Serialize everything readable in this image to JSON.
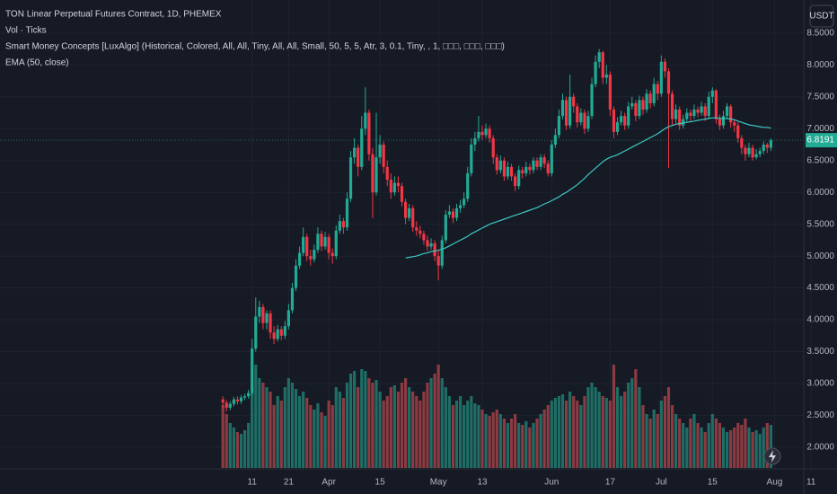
{
  "chart_data": {
    "type": "candlestick",
    "title": "TON Linear Perpetual Futures Contract, 1D, PHEMEX",
    "currency": "USDT",
    "up_color": "#22ab94",
    "down_color": "#f23645",
    "overlays": [
      "Smart Money Concepts [LuxAlgo] (Historical, Colored, All, All, Tiny, All, All, Small, 50, 5, 5, Atr, 3, 0.1, Tiny, , 1, □□□, □□□, □□□)"
    ],
    "open": [
      2.75,
      2.7,
      2.62,
      2.68,
      2.75,
      2.72,
      2.78,
      2.8,
      2.85,
      3.55,
      4.05,
      4.2,
      3.95,
      4.1,
      3.8,
      3.7,
      3.85,
      3.75,
      3.9,
      4.15,
      4.5,
      4.85,
      5.05,
      5.3,
      5.0,
      4.95,
      5.1,
      5.35,
      5.15,
      5.3,
      5.05,
      5.0,
      5.4,
      5.55,
      5.45,
      5.9,
      6.55,
      6.7,
      6.4,
      7.0,
      7.25,
      6.6,
      6.0,
      6.55,
      6.75,
      6.4,
      6.2,
      6.0,
      6.15,
      6.1,
      5.85,
      5.6,
      5.75,
      5.45,
      5.4,
      5.35,
      5.25,
      5.15,
      5.2,
      5.0,
      4.85,
      5.25,
      5.65,
      5.7,
      5.6,
      5.75,
      5.8,
      5.9,
      6.3,
      6.75,
      6.85,
      6.95,
      6.9,
      7.0,
      6.85,
      6.55,
      6.35,
      6.5,
      6.25,
      6.4,
      6.25,
      6.1,
      6.35,
      6.3,
      6.4,
      6.35,
      6.5,
      6.4,
      6.55,
      6.45,
      6.3,
      6.75,
      6.9,
      7.2,
      7.45,
      7.05,
      7.5,
      7.35,
      7.1,
      7.25,
      7.0,
      7.2,
      7.7,
      8.05,
      8.2,
      7.8,
      7.85,
      7.3,
      6.95,
      7.1,
      7.2,
      7.05,
      7.35,
      7.4,
      7.2,
      7.45,
      7.3,
      7.55,
      7.4,
      7.7,
      7.55,
      8.05,
      7.9,
      7.55,
      7.15,
      7.3,
      7.05,
      7.15,
      7.25,
      7.2,
      7.3,
      7.25,
      7.35,
      7.2,
      7.5,
      7.6,
      7.15,
      7.05,
      7.2,
      7.35,
      7.1,
      7.05,
      6.85,
      6.7,
      6.6,
      6.7,
      6.55,
      6.6,
      6.65,
      6.75,
      6.7
    ],
    "high": [
      2.8,
      2.74,
      2.72,
      2.79,
      2.8,
      2.82,
      2.84,
      2.9,
      3.7,
      4.35,
      4.3,
      4.25,
      4.15,
      4.15,
      3.9,
      3.92,
      3.9,
      3.98,
      4.25,
      4.58,
      4.95,
      5.15,
      5.45,
      5.35,
      5.1,
      5.18,
      5.45,
      5.4,
      5.38,
      5.35,
      5.12,
      5.48,
      5.65,
      5.6,
      6.0,
      6.65,
      6.85,
      6.75,
      7.2,
      7.65,
      7.3,
      6.7,
      7.25,
      6.9,
      6.8,
      6.5,
      6.3,
      6.25,
      6.25,
      6.15,
      5.9,
      5.82,
      5.8,
      5.55,
      5.48,
      5.4,
      5.32,
      5.28,
      5.25,
      5.1,
      5.32,
      5.72,
      5.8,
      5.75,
      5.82,
      5.88,
      6.0,
      6.4,
      6.85,
      6.95,
      7.2,
      7.05,
      7.08,
      7.05,
      6.9,
      6.6,
      6.58,
      6.55,
      6.48,
      6.45,
      6.3,
      6.42,
      6.4,
      6.48,
      6.45,
      6.55,
      6.55,
      6.6,
      6.6,
      6.5,
      6.82,
      7.0,
      7.3,
      7.55,
      7.5,
      7.85,
      7.55,
      7.4,
      7.32,
      7.3,
      7.28,
      7.8,
      8.15,
      8.25,
      8.22,
      8.0,
      7.9,
      7.35,
      7.18,
      7.28,
      7.25,
      7.42,
      7.5,
      7.45,
      7.52,
      7.5,
      7.62,
      7.6,
      7.8,
      7.75,
      8.15,
      8.1,
      7.95,
      7.6,
      7.38,
      7.35,
      7.22,
      7.32,
      7.3,
      7.38,
      7.35,
      7.42,
      7.4,
      7.58,
      7.65,
      7.62,
      7.22,
      7.28,
      7.4,
      7.38,
      7.15,
      7.1,
      6.9,
      6.75,
      6.78,
      6.75,
      6.68,
      6.7,
      6.8,
      6.78,
      6.85
    ],
    "low": [
      2.62,
      2.56,
      2.58,
      2.64,
      2.67,
      2.68,
      2.74,
      2.76,
      2.82,
      3.5,
      3.95,
      3.85,
      3.85,
      3.7,
      3.62,
      3.66,
      3.68,
      3.7,
      3.85,
      4.1,
      4.45,
      4.8,
      5.0,
      4.92,
      4.85,
      4.9,
      5.05,
      5.08,
      5.1,
      4.95,
      4.88,
      4.95,
      5.35,
      5.35,
      5.4,
      5.85,
      6.45,
      6.25,
      6.35,
      6.9,
      6.5,
      5.6,
      5.95,
      6.45,
      6.3,
      6.1,
      5.9,
      5.95,
      6.0,
      5.78,
      5.5,
      5.55,
      5.38,
      5.32,
      5.28,
      5.18,
      5.08,
      5.1,
      4.92,
      4.62,
      4.8,
      5.2,
      5.6,
      5.52,
      5.55,
      5.68,
      5.75,
      5.85,
      6.25,
      6.65,
      6.8,
      6.82,
      6.85,
      6.78,
      6.45,
      6.28,
      6.3,
      6.18,
      6.2,
      6.18,
      6.02,
      6.05,
      6.22,
      6.25,
      6.28,
      6.3,
      6.35,
      6.35,
      6.38,
      6.25,
      6.25,
      6.7,
      6.85,
      7.15,
      6.98,
      7.0,
      7.25,
      7.02,
      7.05,
      6.92,
      6.95,
      7.15,
      7.65,
      7.95,
      7.7,
      7.7,
      7.2,
      6.85,
      6.9,
      7.05,
      6.98,
      7.0,
      7.3,
      7.12,
      7.15,
      7.22,
      7.25,
      7.32,
      7.35,
      7.45,
      7.5,
      7.8,
      6.38,
      7.05,
      7.08,
      6.98,
      7.0,
      7.1,
      7.12,
      7.15,
      7.18,
      7.2,
      7.12,
      7.15,
      7.4,
      7.08,
      6.98,
      7.0,
      7.15,
      7.02,
      6.95,
      6.78,
      6.6,
      6.5,
      6.55,
      6.5,
      6.52,
      6.55,
      6.6,
      6.62,
      6.65
    ],
    "close": [
      2.7,
      2.62,
      2.68,
      2.75,
      2.72,
      2.78,
      2.8,
      2.85,
      3.55,
      4.05,
      4.2,
      3.95,
      4.1,
      3.8,
      3.7,
      3.85,
      3.75,
      3.9,
      4.15,
      4.5,
      4.85,
      5.05,
      5.3,
      5.0,
      4.95,
      5.1,
      5.35,
      5.15,
      5.3,
      5.05,
      5.0,
      5.4,
      5.55,
      5.45,
      5.9,
      6.55,
      6.7,
      6.4,
      7.0,
      7.25,
      6.6,
      6.0,
      6.55,
      6.75,
      6.4,
      6.2,
      6.0,
      6.15,
      6.1,
      5.85,
      5.6,
      5.75,
      5.45,
      5.4,
      5.35,
      5.25,
      5.15,
      5.2,
      5.0,
      4.85,
      5.25,
      5.65,
      5.7,
      5.6,
      5.75,
      5.8,
      5.9,
      6.3,
      6.75,
      6.85,
      6.95,
      6.9,
      7.0,
      6.85,
      6.55,
      6.35,
      6.5,
      6.25,
      6.4,
      6.25,
      6.1,
      6.35,
      6.3,
      6.4,
      6.35,
      6.5,
      6.4,
      6.55,
      6.45,
      6.3,
      6.75,
      6.9,
      7.2,
      7.45,
      7.05,
      7.5,
      7.35,
      7.1,
      7.25,
      7.0,
      7.2,
      7.7,
      8.05,
      8.2,
      7.8,
      7.85,
      7.3,
      6.95,
      7.1,
      7.2,
      7.05,
      7.35,
      7.4,
      7.2,
      7.45,
      7.3,
      7.55,
      7.4,
      7.7,
      7.55,
      8.05,
      7.9,
      7.55,
      7.15,
      7.3,
      7.05,
      7.15,
      7.25,
      7.2,
      7.3,
      7.25,
      7.35,
      7.2,
      7.5,
      7.6,
      7.15,
      7.05,
      7.2,
      7.35,
      7.1,
      7.05,
      6.85,
      6.7,
      6.6,
      6.7,
      6.55,
      6.6,
      6.65,
      6.75,
      6.7,
      6.82
    ],
    "volume": {
      "name": "Vol · Ticks",
      "up_color": "#1f6e66",
      "down_color": "#8c3b42",
      "values": [
        70,
        60,
        50,
        45,
        40,
        38,
        42,
        50,
        90,
        115,
        100,
        95,
        90,
        85,
        70,
        80,
        75,
        90,
        100,
        95,
        88,
        80,
        85,
        78,
        70,
        65,
        72,
        62,
        58,
        75,
        70,
        90,
        85,
        78,
        95,
        105,
        108,
        90,
        110,
        108,
        100,
        95,
        98,
        85,
        75,
        80,
        90,
        92,
        85,
        95,
        100,
        90,
        85,
        80,
        75,
        85,
        95,
        100,
        105,
        115,
        100,
        90,
        80,
        70,
        75,
        80,
        70,
        75,
        80,
        72,
        70,
        65,
        60,
        58,
        62,
        65,
        60,
        55,
        50,
        55,
        60,
        50,
        48,
        52,
        45,
        50,
        55,
        60,
        65,
        70,
        75,
        78,
        80,
        82,
        75,
        85,
        80,
        75,
        70,
        80,
        90,
        95,
        90,
        85,
        80,
        78,
        75,
        115,
        90,
        80,
        85,
        95,
        100,
        110,
        90,
        70,
        60,
        55,
        65,
        60,
        75,
        80,
        90,
        70,
        60,
        55,
        50,
        45,
        55,
        60,
        50,
        45,
        40,
        50,
        60,
        55,
        50,
        45,
        40,
        42,
        45,
        50,
        48,
        55,
        45,
        40,
        42,
        38,
        45,
        50,
        48
      ]
    },
    "ema": {
      "name": "EMA (50, close)",
      "color": "#3cc8c2",
      "values": [
        null,
        null,
        null,
        null,
        null,
        null,
        null,
        null,
        null,
        null,
        null,
        null,
        null,
        null,
        null,
        null,
        null,
        null,
        null,
        null,
        null,
        null,
        null,
        null,
        null,
        null,
        null,
        null,
        null,
        null,
        null,
        null,
        null,
        null,
        null,
        null,
        null,
        null,
        null,
        null,
        null,
        null,
        null,
        null,
        null,
        null,
        null,
        null,
        null,
        null,
        4.97,
        4.98,
        4.99,
        5.0,
        5.02,
        5.04,
        5.05,
        5.07,
        5.08,
        5.09,
        5.11,
        5.13,
        5.16,
        5.19,
        5.22,
        5.25,
        5.28,
        5.31,
        5.35,
        5.38,
        5.41,
        5.44,
        5.47,
        5.5,
        5.52,
        5.54,
        5.56,
        5.58,
        5.6,
        5.62,
        5.64,
        5.66,
        5.68,
        5.7,
        5.72,
        5.74,
        5.76,
        5.79,
        5.82,
        5.84,
        5.87,
        5.9,
        5.93,
        5.97,
        6.0,
        6.04,
        6.08,
        6.12,
        6.17,
        6.22,
        6.28,
        6.33,
        6.38,
        6.43,
        6.48,
        6.52,
        6.55,
        6.57,
        6.59,
        6.62,
        6.65,
        6.68,
        6.71,
        6.74,
        6.77,
        6.8,
        6.83,
        6.86,
        6.89,
        6.92,
        6.96,
        7.0,
        7.03,
        7.05,
        7.07,
        7.08,
        7.09,
        7.1,
        7.11,
        7.12,
        7.13,
        7.14,
        7.15,
        7.16,
        7.17,
        7.17,
        7.16,
        7.16,
        7.16,
        7.15,
        7.14,
        7.12,
        7.1,
        7.08,
        7.06,
        7.05,
        7.04,
        7.03,
        7.02,
        7.02,
        7.01
      ]
    },
    "last_price": {
      "value": 6.8191,
      "label": "6.8191"
    },
    "ylim": [
      1.66,
      9.02
    ],
    "yticks": [
      {
        "value": 2,
        "label": "2.0000"
      },
      {
        "value": 2.5,
        "label": "2.5000"
      },
      {
        "value": 3,
        "label": "3.0000"
      },
      {
        "value": 3.5,
        "label": "3.5000"
      },
      {
        "value": 4,
        "label": "4.0000"
      },
      {
        "value": 4.5,
        "label": "4.5000"
      },
      {
        "value": 5,
        "label": "5.0000"
      },
      {
        "value": 5.5,
        "label": "5.5000"
      },
      {
        "value": 6,
        "label": "6.0000"
      },
      {
        "value": 6.5,
        "label": "6.5000"
      },
      {
        "value": 7,
        "label": "7.0000"
      },
      {
        "value": 7.5,
        "label": "7.5000"
      },
      {
        "value": 8,
        "label": "8.0000"
      },
      {
        "value": 8.5,
        "label": "8.5000"
      }
    ],
    "xlim": [
      -61,
      159
    ],
    "xticks": [
      {
        "value": 8,
        "label": "11"
      },
      {
        "value": 18,
        "label": "21"
      },
      {
        "value": 29,
        "label": "Apr"
      },
      {
        "value": 43,
        "label": "15"
      },
      {
        "value": 59,
        "label": "May"
      },
      {
        "value": 71,
        "label": "13"
      },
      {
        "value": 90,
        "label": "Jun"
      },
      {
        "value": 106,
        "label": "17"
      },
      {
        "value": 120,
        "label": "Jul"
      },
      {
        "value": 134,
        "label": "15"
      },
      {
        "value": 151,
        "label": "Aug"
      },
      {
        "value": 161,
        "label": "11"
      }
    ],
    "grid": true
  }
}
